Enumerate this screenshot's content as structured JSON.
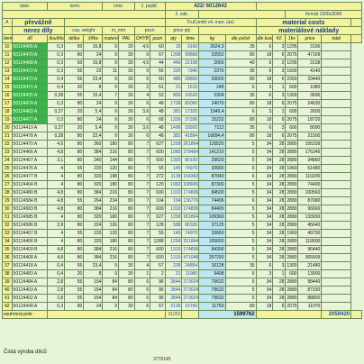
{
  "header": {
    "date_label": "date:",
    "term_label": "term:",
    "note_label": "note:",
    "c_pojist_label": "č. pojišť.",
    "ref_number": "422/ 6012642",
    "c_zak_label": "č. zak.",
    "format_label": "formát 1500x3000",
    "material_costs_title": "material costs",
    "material_costs_subtitle": "materiálové náklady",
    "col_A": "A",
    "prevazne_label": "převážně",
    "nerez_label": "nerez díly",
    "col_cas_label": "cas, weight",
    "col_m_label": "m_mm",
    "pozn_label": "pozn",
    "trucomb_label": "TruCombi v4, man. (as)",
    "price_label": "price qty",
    "dle_label": "dle",
    "cena_label": "cena za",
    "dle_pocet_label": "dle počet",
    "dle_kusu_label": "dle kusu",
    "col_item": "item",
    "col_dil": "díl",
    "col_kod": "kód",
    "col_tloustka": "tloušťka",
    "col_delka": "délka",
    "col_sirka": "šířka",
    "col_mat": "materiál",
    "col_pal": "PAL",
    "col_ohyb": "OHYB",
    "col_pozn": "pozn",
    "col_qty": "qty",
    "col_kg": "kg",
    "col_cena": "cena",
    "col_price": "price",
    "col_time": "time",
    "col_total": "total",
    "col_kc": "Kč",
    "col_1ks": "1ks"
  },
  "rows": [
    {
      "n": "10",
      "part": "50124465 A",
      "t": "0,3",
      "w": "50",
      "l": "16,8",
      "m": "9",
      "p": "30",
      "x": "4,5",
      "q": "60",
      "a": "15",
      "kg": "9160",
      "c": "2624,3",
      "d": "35",
      "e": "6",
      "f": "3",
      "g": "1295",
      "h": "3196"
    },
    {
      "n": "11",
      "part": "50124470 A",
      "t": "0,3",
      "w": "80",
      "l": "24",
      "m": "9",
      "p": "30",
      "x": "6",
      "q": "67",
      "a": "1398",
      "kg": "99868",
      "c": "33552",
      "d": "80",
      "e": "18",
      "f": "6",
      "g": "2075",
      "h": "47169"
    },
    {
      "n": "12",
      "part": "50124468 A",
      "t": "0,3",
      "w": "50",
      "l": "16,8",
      "m": "9",
      "p": "30",
      "x": "4,5",
      "q": "44",
      "a": "440",
      "kg": "22108",
      "c": "2656",
      "d": "40",
      "e": "6",
      "f": "2",
      "g": "1295",
      "h": "3128"
    },
    {
      "n": "13",
      "part": "50124472 A",
      "t": "0,3",
      "w": "55",
      "l": "22",
      "m": "11",
      "p": "30",
      "x": "5",
      "q": "55",
      "a": "220",
      "kg": "7940",
      "c": "2376",
      "d": "35",
      "e": "6",
      "f": "3",
      "g": "1600",
      "h": "4140"
    },
    {
      "n": "14",
      "part": "50124473 A",
      "t": "0,4",
      "w": "55",
      "l": "23,4",
      "m": "9",
      "p": "30",
      "x": "6",
      "q": "60",
      "a": "480",
      "kg": "28800",
      "c": "26600",
      "d": "80",
      "e": "18",
      "f": "6",
      "g": "2300",
      "h": "33440"
    },
    {
      "n": "15",
      "part": "50124471 A",
      "t": "0,4",
      "w": "20",
      "l": "8",
      "m": "9",
      "p": "30",
      "x": "2",
      "q": "51",
      "a": "21",
      "kg": "1610",
      "c": "248",
      "d": "6",
      "e": "3",
      "f": "1",
      "g": "600",
      "h": "1080"
    },
    {
      "n": "16",
      "part": "50124475 A",
      "t": "0,28",
      "w": "55",
      "l": "15,4",
      "m": "7",
      "p": "30",
      "x": "4",
      "q": "52",
      "a": "800",
      "kg": "16520",
      "c": "3304",
      "d": "35",
      "e": "6",
      "f": "3",
      "g": "1300",
      "h": "3696"
    },
    {
      "n": "17",
      "part": "50124474 A",
      "t": "0,3",
      "w": "80",
      "l": "24",
      "m": "9",
      "p": "30",
      "x": "6",
      "q": "48",
      "a": "1728",
      "kg": "80000",
      "c": "24070",
      "d": "80",
      "e": "18",
      "f": "6",
      "g": "2075",
      "h": "24630"
    },
    {
      "n": "18",
      "part": "50124403 A",
      "t": "0,27",
      "w": "20",
      "l": "5,4",
      "m": "9",
      "p": "30",
      "x": "3,6",
      "q": "48",
      "a": "381",
      "kg": "17320",
      "c": "1949,4",
      "d": "6",
      "e": "3",
      "f": "1",
      "g": "600",
      "h": "2600"
    },
    {
      "n": "19",
      "part": "50124477 A",
      "t": "0,3",
      "w": "80",
      "l": "24",
      "m": "9",
      "p": "30",
      "x": "6",
      "q": "68",
      "a": "1336",
      "kg": "37336",
      "c": "15232",
      "d": "80",
      "e": "18",
      "f": "6",
      "g": "2075",
      "h": "18720"
    },
    {
      "n": "20",
      "part": "50124419 A",
      "t": "0,27",
      "w": "20",
      "l": "5,4",
      "m": "9",
      "p": "30",
      "x": "3,6",
      "q": "48",
      "a": "1496",
      "kg": "18920",
      "c": "7112",
      "d": "35",
      "e": "6",
      "f": "3",
      "g": "600",
      "h": "8000"
    },
    {
      "n": "21",
      "part": "50124478 A",
      "t": "0,28",
      "w": "80",
      "l": "22,4",
      "m": "9",
      "p": "30",
      "x": "6",
      "q": "48",
      "a": "382",
      "kg": "41894",
      "c": "16894,4",
      "d": "80",
      "e": "18",
      "f": "6",
      "g": "2075",
      "h": "21500"
    },
    {
      "n": "22",
      "part": "50124470 A",
      "t": "4,6",
      "w": "80",
      "l": "360",
      "m": "180",
      "p": "80",
      "x": "7",
      "q": "627",
      "a": "1258",
      "kg": "261894",
      "c": "115520",
      "d": "5",
      "e": "34",
      "f": "28",
      "g": "2880",
      "h": "155339"
    },
    {
      "n": "23",
      "part": "50124466 A",
      "t": "4,8",
      "w": "80",
      "l": "384",
      "m": "216",
      "p": "80",
      "x": "7",
      "q": "600",
      "a": "1080",
      "kg": "378484",
      "c": "141210",
      "d": "5",
      "e": "34",
      "f": "28",
      "g": "2880",
      "h": "176346"
    },
    {
      "n": "24",
      "part": "50124467 A",
      "t": "3,1",
      "w": "80",
      "l": "240",
      "m": "144",
      "p": "80",
      "x": "7",
      "q": "600",
      "a": "1300",
      "kg": "80100",
      "c": "29620",
      "d": "5",
      "e": "34",
      "f": "28",
      "g": "2880",
      "h": "34860"
    },
    {
      "n": "25",
      "part": "50124476 A",
      "t": "4",
      "w": "55",
      "l": "220",
      "m": "120",
      "p": "80",
      "x": "7",
      "q": "55",
      "a": "145",
      "kg": "74970",
      "c": "33660",
      "d": "5",
      "e": "34",
      "f": "28",
      "g": "1960",
      "h": "51480"
    },
    {
      "n": "26",
      "part": "50124477 B",
      "t": "4",
      "w": "80",
      "l": "320",
      "m": "198",
      "p": "80",
      "x": "7",
      "q": "272",
      "a": "1138",
      "kg": "164360",
      "c": "87040",
      "d": "6",
      "e": "34",
      "f": "28",
      "g": "2880",
      "h": "110200"
    },
    {
      "n": "27",
      "part": "50124404 B",
      "t": "4",
      "w": "80",
      "l": "320",
      "m": "180",
      "p": "80",
      "x": "7",
      "q": "120",
      "a": "1082",
      "kg": "1080000",
      "c": "87300",
      "d": "5",
      "e": "34",
      "f": "28",
      "g": "2880",
      "h": "74400"
    },
    {
      "n": "28",
      "part": "50124480 B",
      "t": "4,8",
      "w": "80",
      "l": "384",
      "m": "216",
      "p": "80",
      "x": "7",
      "q": "600",
      "a": "1310",
      "kg": "174836",
      "c": "84500",
      "d": "5",
      "e": "34",
      "f": "28",
      "g": "2880",
      "h": "100560"
    },
    {
      "n": "29",
      "part": "50124584 B",
      "t": "4,8",
      "w": "55",
      "l": "264",
      "m": "234",
      "p": "80",
      "x": "7",
      "q": "104",
      "a": "194",
      "kg": "136776",
      "c": "74496",
      "d": "6",
      "e": "34",
      "f": "28",
      "g": "2880",
      "h": "87680"
    },
    {
      "n": "30",
      "part": "50124583 B",
      "t": "4,8",
      "w": "80",
      "l": "384",
      "m": "216",
      "p": "80",
      "x": "7",
      "q": "600",
      "a": "1310",
      "kg": "174836",
      "c": "84400",
      "d": "5",
      "e": "34",
      "f": "28",
      "g": "2880",
      "h": "96660"
    },
    {
      "n": "31",
      "part": "50124585 B",
      "t": "4",
      "w": "80",
      "l": "320",
      "m": "180",
      "p": "80",
      "x": "7",
      "q": "627",
      "a": "1258",
      "kg": "261894",
      "c": "109360",
      "d": "5",
      "e": "34",
      "f": "28",
      "g": "2880",
      "h": "133930"
    },
    {
      "n": "32",
      "part": "50124586 B",
      "t": "2,8",
      "w": "80",
      "l": "224",
      "m": "126",
      "p": "80",
      "x": "7",
      "q": "128",
      "a": "588",
      "kg": "86320",
      "c": "37125",
      "d": "5",
      "e": "34",
      "f": "28",
      "g": "2880",
      "h": "45640"
    },
    {
      "n": "33",
      "part": "50124407 B",
      "t": "4",
      "w": "55",
      "l": "220",
      "m": "120",
      "p": "80",
      "x": "7",
      "q": "55",
      "a": "145",
      "kg": "74970",
      "c": "33660",
      "d": "5",
      "e": "34",
      "f": "28",
      "g": "1960",
      "h": "49730"
    },
    {
      "n": "34",
      "part": "50124406 B",
      "t": "4",
      "w": "80",
      "l": "320",
      "m": "180",
      "p": "80",
      "x": "7",
      "q": "1288",
      "a": "1258",
      "kg": "261894",
      "c": "105600",
      "d": "5",
      "e": "34",
      "f": "28",
      "g": "2880",
      "h": "119500"
    },
    {
      "n": "35",
      "part": "50124409 B",
      "t": "4,8",
      "w": "80",
      "l": "384",
      "m": "216",
      "p": "80",
      "x": "7",
      "q": "600",
      "a": "1310",
      "kg": "174836",
      "c": "84300",
      "d": "5",
      "e": "34",
      "f": "28",
      "g": "2880",
      "h": "96440"
    },
    {
      "n": "36",
      "part": "50124408 A",
      "t": "4,8",
      "w": "80",
      "l": "384",
      "m": "216",
      "p": "80",
      "x": "7",
      "q": "600",
      "a": "1310",
      "kg": "471048",
      "c": "257290",
      "d": "5",
      "e": "34",
      "f": "28",
      "g": "2880",
      "h": "365909"
    },
    {
      "n": "37",
      "part": "50124418 A",
      "t": "0,4",
      "w": "55",
      "l": "23,4",
      "m": "9",
      "p": "30",
      "x": "4",
      "q": "57",
      "a": "236",
      "kg": "24854",
      "c": "16128",
      "d": "35",
      "e": "6",
      "f": "3",
      "g": "1300",
      "h": "21480"
    },
    {
      "n": "38",
      "part": "50124483 A",
      "t": "0,4",
      "w": "20",
      "l": "8",
      "m": "9",
      "p": "30",
      "x": "1",
      "q": "2",
      "a": "21",
      "kg": "11980",
      "c": "9408",
      "d": "6",
      "e": "3",
      "f": "1",
      "g": "600",
      "h": "13900"
    },
    {
      "n": "39",
      "part": "50124484 A",
      "t": "2,8",
      "w": "55",
      "l": "154",
      "m": "84",
      "p": "80",
      "x": "6",
      "q": "96",
      "a": "2844",
      "kg": "273024",
      "c": "79632",
      "d": "5",
      "e": "34",
      "f": "28",
      "g": "2880",
      "h": "98440"
    },
    {
      "n": "40",
      "part": "50124403 A",
      "t": "2,8",
      "w": "55",
      "l": "154",
      "m": "84",
      "p": "80",
      "x": "6",
      "q": "96",
      "a": "2844",
      "kg": "273024",
      "c": "79632",
      "d": "5",
      "e": "34",
      "f": "28",
      "g": "2880",
      "h": "87330"
    },
    {
      "n": "41",
      "part": "50124402 A",
      "t": "2,8",
      "w": "55",
      "l": "154",
      "m": "84",
      "p": "80",
      "x": "6",
      "q": "96",
      "a": "2844",
      "kg": "273024",
      "c": "79632",
      "d": "5",
      "e": "34",
      "f": "28",
      "g": "2880",
      "h": "88800"
    },
    {
      "n": "42",
      "part": "50124440 A",
      "t": "0,3",
      "w": "80",
      "l": "24",
      "m": "9",
      "p": "30",
      "x": "6",
      "q": "67",
      "a": "2135",
      "kg": "15760",
      "c": "11760",
      "d": "80",
      "e": "18",
      "f": "6",
      "g": "2075",
      "h": "11070"
    }
  ],
  "summary": {
    "label": "souhrnná pole",
    "total_a": "21252",
    "total_c": "1599762",
    "total_h": "2059420"
  },
  "footer": {
    "line1": "Čistá výroba dílců",
    "line2": "3778145"
  }
}
